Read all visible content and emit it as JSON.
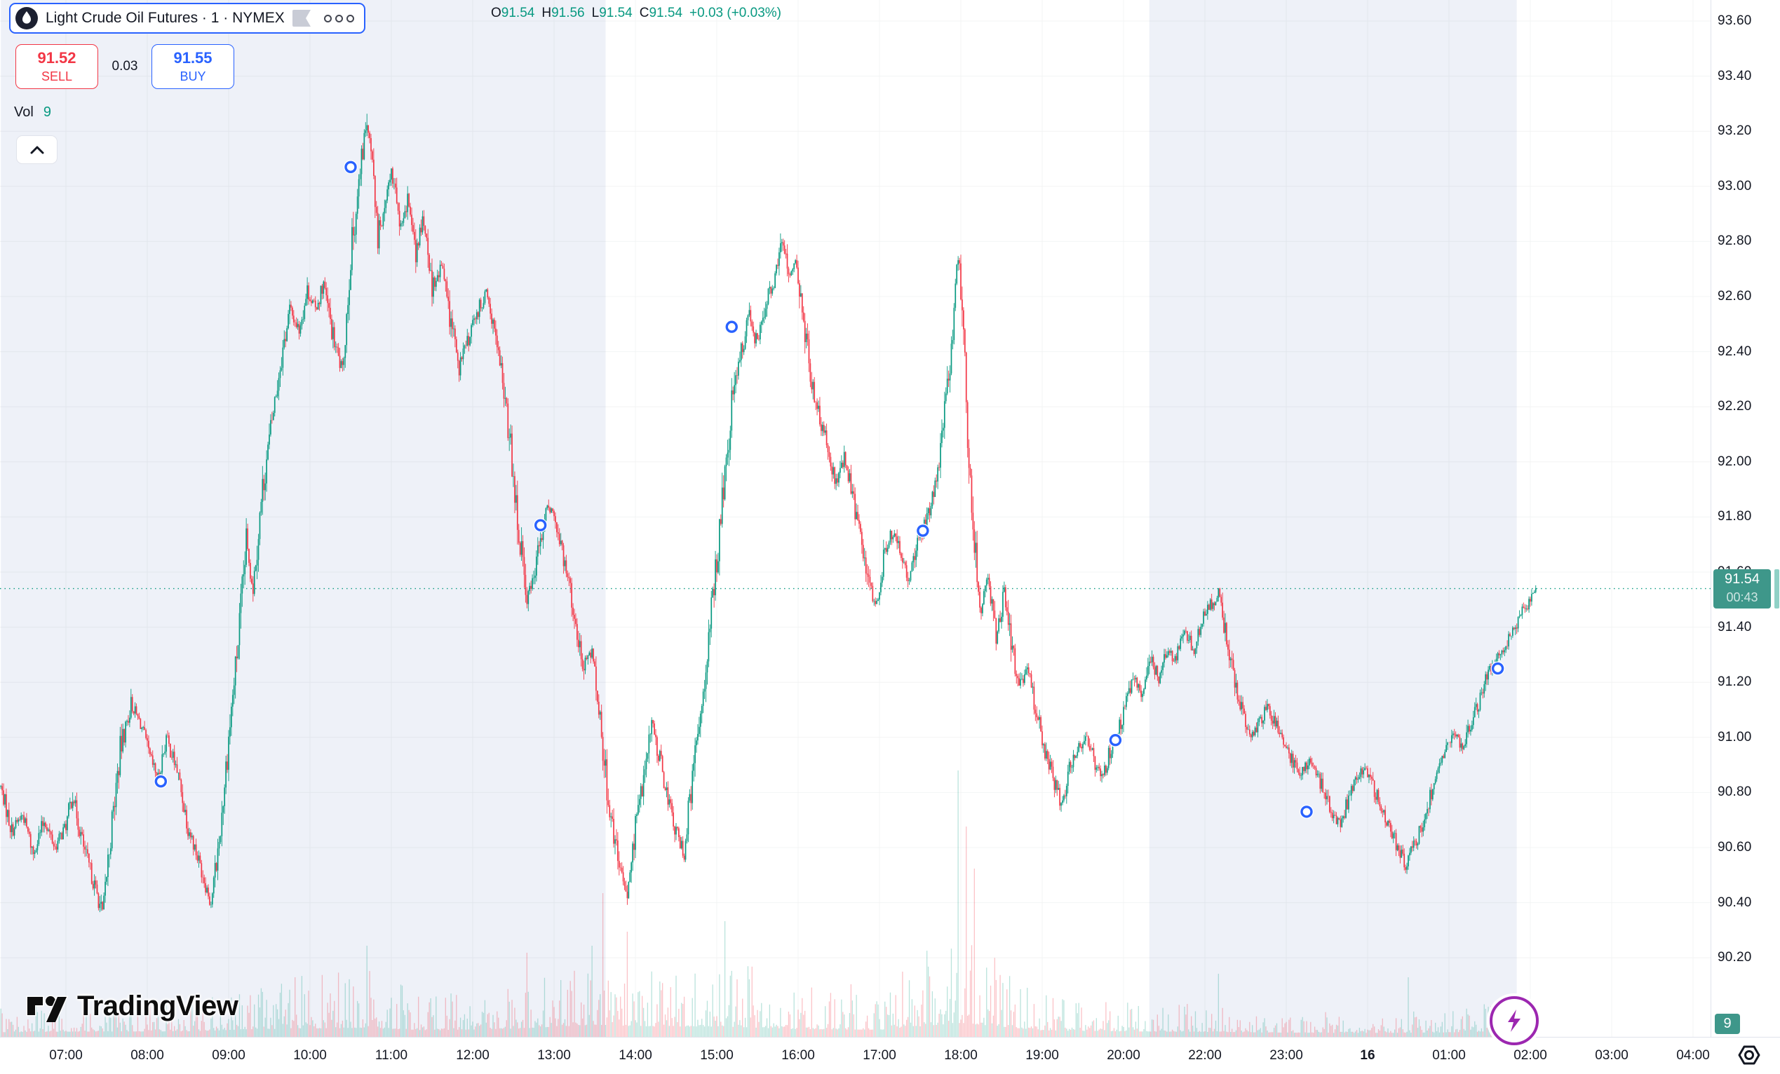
{
  "header": {
    "symbol_title": "Light Crude Oil Futures · 1 · NYMEX",
    "ohlc": {
      "o_label": "O",
      "o": "91.54",
      "h_label": "H",
      "h": "91.56",
      "l_label": "L",
      "l": "91.54",
      "c_label": "C",
      "c": "91.54",
      "change": "+0.03 (+0.03%)"
    }
  },
  "trade": {
    "sell_price": "91.52",
    "sell_label": "SELL",
    "spread": "0.03",
    "buy_price": "91.55",
    "buy_label": "BUY"
  },
  "volume_row": {
    "label": "Vol",
    "value": "9"
  },
  "price_axis": {
    "ticks": [
      "93.60",
      "93.40",
      "93.20",
      "93.00",
      "92.80",
      "92.60",
      "92.40",
      "92.20",
      "92.00",
      "91.80",
      "91.60",
      "91.40",
      "91.20",
      "91.00",
      "90.80",
      "90.60",
      "90.40",
      "90.20"
    ],
    "current_price": "91.54",
    "countdown": "00:43",
    "volume_badge": "9"
  },
  "time_axis": {
    "labels": [
      {
        "text": "07:00",
        "time": "07:00"
      },
      {
        "text": "08:00",
        "time": "08:00"
      },
      {
        "text": "09:00",
        "time": "09:00"
      },
      {
        "text": "10:00",
        "time": "10:00"
      },
      {
        "text": "11:00",
        "time": "11:00"
      },
      {
        "text": "12:00",
        "time": "12:00"
      },
      {
        "text": "13:00",
        "time": "13:00"
      },
      {
        "text": "14:00",
        "time": "14:00"
      },
      {
        "text": "15:00",
        "time": "15:00"
      },
      {
        "text": "16:00",
        "time": "16:00"
      },
      {
        "text": "17:00",
        "time": "17:00"
      },
      {
        "text": "18:00",
        "time": "18:00"
      },
      {
        "text": "19:00",
        "time": "19:00"
      },
      {
        "text": "20:00",
        "time": "20:00"
      },
      {
        "text": "22:00",
        "time": "22:00"
      },
      {
        "text": "23:00",
        "time": "23:00"
      },
      {
        "text": "16",
        "time": "00:00",
        "bold": true
      },
      {
        "text": "01:00",
        "time": "01:00"
      },
      {
        "text": "02:00",
        "time": "02:00"
      },
      {
        "text": "03:00",
        "time": "03:00"
      },
      {
        "text": "04:00",
        "time": "04:00"
      }
    ]
  },
  "footer": {
    "logo_text": "TradingView"
  },
  "colors": {
    "up": "#089981",
    "down": "#f23645",
    "vol_up": "rgba(8,153,129,0.28)",
    "vol_down": "rgba(242,54,69,0.30)",
    "accent_blue": "#2962ff",
    "sell_red": "#f23645",
    "badge_green": "#3e978a",
    "session_band": "#eef1f8",
    "grid": "rgba(42,46,57,0.055)",
    "text": "#131722",
    "axis_border": "#e0e3eb",
    "marker_blue": "#2962ff",
    "lightning_purple": "#9c27b0",
    "price_line": "#089981"
  },
  "chart_data": {
    "type": "candlestick",
    "symbol": "Light Crude Oil Futures",
    "interval": "1",
    "exchange": "NYMEX",
    "last_price": 91.54,
    "bar_change": 0.03,
    "ylim": [
      89.9,
      93.68
    ],
    "price_step": 0.2,
    "visible_time_range": [
      "06:12",
      "04:00"
    ],
    "trading_halt": [
      "21:00",
      "22:00"
    ],
    "price_path": [
      [
        "06:12",
        90.82
      ],
      [
        "06:20",
        90.66
      ],
      [
        "06:28",
        90.72
      ],
      [
        "06:36",
        90.58
      ],
      [
        "06:44",
        90.7
      ],
      [
        "06:52",
        90.6
      ],
      [
        "07:00",
        90.68
      ],
      [
        "07:05",
        90.8
      ],
      [
        "07:12",
        90.62
      ],
      [
        "07:20",
        90.48
      ],
      [
        "07:27",
        90.36
      ],
      [
        "07:32",
        90.6
      ],
      [
        "07:40",
        90.95
      ],
      [
        "07:48",
        91.12
      ],
      [
        "07:55",
        91.05
      ],
      [
        "08:02",
        90.92
      ],
      [
        "08:08",
        90.85
      ],
      [
        "08:14",
        91.0
      ],
      [
        "08:22",
        90.88
      ],
      [
        "08:30",
        90.68
      ],
      [
        "08:40",
        90.52
      ],
      [
        "08:47",
        90.4
      ],
      [
        "08:53",
        90.62
      ],
      [
        "09:00",
        91.0
      ],
      [
        "09:07",
        91.35
      ],
      [
        "09:13",
        91.7
      ],
      [
        "09:18",
        91.55
      ],
      [
        "09:25",
        91.9
      ],
      [
        "09:32",
        92.15
      ],
      [
        "09:38",
        92.35
      ],
      [
        "09:45",
        92.55
      ],
      [
        "09:52",
        92.48
      ],
      [
        "09:58",
        92.62
      ],
      [
        "10:04",
        92.55
      ],
      [
        "10:10",
        92.65
      ],
      [
        "10:17",
        92.45
      ],
      [
        "10:24",
        92.32
      ],
      [
        "10:30",
        92.75
      ],
      [
        "10:36",
        93.0
      ],
      [
        "10:42",
        93.25
      ],
      [
        "10:46",
        93.1
      ],
      [
        "10:50",
        92.8
      ],
      [
        "10:55",
        92.95
      ],
      [
        "11:00",
        93.05
      ],
      [
        "11:06",
        92.85
      ],
      [
        "11:12",
        92.95
      ],
      [
        "11:18",
        92.75
      ],
      [
        "11:24",
        92.88
      ],
      [
        "11:30",
        92.62
      ],
      [
        "11:37",
        92.72
      ],
      [
        "11:44",
        92.5
      ],
      [
        "11:50",
        92.35
      ],
      [
        "11:57",
        92.45
      ],
      [
        "12:04",
        92.55
      ],
      [
        "12:10",
        92.62
      ],
      [
        "12:16",
        92.45
      ],
      [
        "12:22",
        92.3
      ],
      [
        "12:28",
        92.05
      ],
      [
        "12:34",
        91.75
      ],
      [
        "12:40",
        91.5
      ],
      [
        "12:46",
        91.62
      ],
      [
        "12:52",
        91.78
      ],
      [
        "12:58",
        91.85
      ],
      [
        "13:04",
        91.72
      ],
      [
        "13:10",
        91.58
      ],
      [
        "13:16",
        91.4
      ],
      [
        "13:22",
        91.25
      ],
      [
        "13:28",
        91.32
      ],
      [
        "13:34",
        91.05
      ],
      [
        "13:40",
        90.78
      ],
      [
        "13:47",
        90.55
      ],
      [
        "13:54",
        90.42
      ],
      [
        "14:00",
        90.68
      ],
      [
        "14:06",
        90.85
      ],
      [
        "14:12",
        91.05
      ],
      [
        "14:18",
        90.92
      ],
      [
        "14:24",
        90.78
      ],
      [
        "14:30",
        90.65
      ],
      [
        "14:36",
        90.58
      ],
      [
        "14:42",
        90.85
      ],
      [
        "14:48",
        91.1
      ],
      [
        "14:54",
        91.35
      ],
      [
        "15:00",
        91.65
      ],
      [
        "15:06",
        91.95
      ],
      [
        "15:12",
        92.25
      ],
      [
        "15:18",
        92.4
      ],
      [
        "15:24",
        92.52
      ],
      [
        "15:30",
        92.42
      ],
      [
        "15:36",
        92.58
      ],
      [
        "15:42",
        92.65
      ],
      [
        "15:48",
        92.82
      ],
      [
        "15:53",
        92.68
      ],
      [
        "15:58",
        92.72
      ],
      [
        "16:04",
        92.5
      ],
      [
        "16:10",
        92.3
      ],
      [
        "16:16",
        92.15
      ],
      [
        "16:22",
        92.05
      ],
      [
        "16:28",
        91.92
      ],
      [
        "16:34",
        92.02
      ],
      [
        "16:40",
        91.88
      ],
      [
        "16:46",
        91.72
      ],
      [
        "16:52",
        91.55
      ],
      [
        "16:58",
        91.48
      ],
      [
        "17:04",
        91.68
      ],
      [
        "17:10",
        91.75
      ],
      [
        "17:16",
        91.65
      ],
      [
        "17:22",
        91.58
      ],
      [
        "17:28",
        91.7
      ],
      [
        "17:34",
        91.78
      ],
      [
        "17:40",
        91.88
      ],
      [
        "17:46",
        92.1
      ],
      [
        "17:52",
        92.35
      ],
      [
        "17:58",
        92.78
      ],
      [
        "18:02",
        92.45
      ],
      [
        "18:06",
        92.0
      ],
      [
        "18:10",
        91.7
      ],
      [
        "18:15",
        91.48
      ],
      [
        "18:20",
        91.58
      ],
      [
        "18:26",
        91.38
      ],
      [
        "18:32",
        91.52
      ],
      [
        "18:38",
        91.3
      ],
      [
        "18:44",
        91.18
      ],
      [
        "18:50",
        91.25
      ],
      [
        "18:56",
        91.08
      ],
      [
        "19:02",
        90.95
      ],
      [
        "19:08",
        90.85
      ],
      [
        "19:14",
        90.76
      ],
      [
        "19:20",
        90.88
      ],
      [
        "19:26",
        90.95
      ],
      [
        "19:32",
        91.02
      ],
      [
        "19:38",
        90.92
      ],
      [
        "19:44",
        90.85
      ],
      [
        "19:50",
        90.95
      ],
      [
        "19:56",
        91.02
      ],
      [
        "20:02",
        91.12
      ],
      [
        "20:08",
        91.22
      ],
      [
        "20:14",
        91.15
      ],
      [
        "20:20",
        91.28
      ],
      [
        "20:26",
        91.22
      ],
      [
        "20:32",
        91.32
      ],
      [
        "20:38",
        91.28
      ],
      [
        "20:45",
        91.38
      ],
      [
        "20:52",
        91.32
      ],
      [
        "20:58",
        91.42
      ],
      [
        "22:04",
        91.48
      ],
      [
        "22:10",
        91.52
      ],
      [
        "22:16",
        91.35
      ],
      [
        "22:22",
        91.2
      ],
      [
        "22:28",
        91.08
      ],
      [
        "22:34",
        91.0
      ],
      [
        "22:40",
        91.05
      ],
      [
        "22:46",
        91.12
      ],
      [
        "22:52",
        91.05
      ],
      [
        "22:58",
        90.98
      ],
      [
        "23:04",
        90.92
      ],
      [
        "23:10",
        90.85
      ],
      [
        "23:16",
        90.92
      ],
      [
        "23:22",
        90.88
      ],
      [
        "23:28",
        90.8
      ],
      [
        "23:34",
        90.72
      ],
      [
        "23:40",
        90.68
      ],
      [
        "23:46",
        90.78
      ],
      [
        "23:52",
        90.85
      ],
      [
        "23:58",
        90.9
      ],
      [
        "00:04",
        90.82
      ],
      [
        "00:10",
        90.75
      ],
      [
        "00:16",
        90.68
      ],
      [
        "00:22",
        90.6
      ],
      [
        "00:28",
        90.54
      ],
      [
        "00:34",
        90.6
      ],
      [
        "00:40",
        90.68
      ],
      [
        "00:46",
        90.78
      ],
      [
        "00:52",
        90.88
      ],
      [
        "00:58",
        90.95
      ],
      [
        "01:04",
        91.02
      ],
      [
        "01:10",
        90.95
      ],
      [
        "01:16",
        91.05
      ],
      [
        "01:22",
        91.12
      ],
      [
        "01:28",
        91.22
      ],
      [
        "01:34",
        91.28
      ],
      [
        "01:40",
        91.32
      ],
      [
        "01:46",
        91.38
      ],
      [
        "01:52",
        91.44
      ],
      [
        "01:58",
        91.48
      ],
      [
        "02:04",
        91.54
      ]
    ],
    "order_markers": [
      {
        "time": "08:10",
        "price": 90.84
      },
      {
        "time": "10:30",
        "price": 93.07
      },
      {
        "time": "12:50",
        "price": 91.77
      },
      {
        "time": "15:11",
        "price": 92.49
      },
      {
        "time": "17:32",
        "price": 91.75
      },
      {
        "time": "19:54",
        "price": 90.99
      },
      {
        "time": "23:15",
        "price": 90.73
      },
      {
        "time": "01:36",
        "price": 91.25
      }
    ],
    "session_bands": [
      {
        "start": "06:12",
        "end": "13:38"
      },
      {
        "start": "20:19",
        "end": "01:50"
      }
    ],
    "volume_envelope": [
      [
        "06:12",
        25
      ],
      [
        "07:00",
        30
      ],
      [
        "08:30",
        32
      ],
      [
        "09:20",
        50
      ],
      [
        "10:40",
        60
      ],
      [
        "11:30",
        40
      ],
      [
        "12:35",
        55
      ],
      [
        "13:30",
        85
      ],
      [
        "14:10",
        70
      ],
      [
        "15:05",
        70
      ],
      [
        "16:00",
        50
      ],
      [
        "17:00",
        45
      ],
      [
        "17:55",
        95
      ],
      [
        "18:15",
        85
      ],
      [
        "19:00",
        40
      ],
      [
        "20:00",
        32
      ],
      [
        "22:00",
        28
      ],
      [
        "23:00",
        22
      ],
      [
        "00:10",
        20
      ],
      [
        "01:00",
        24
      ],
      [
        "02:04",
        40
      ]
    ],
    "volume_spikes": [
      [
        "10:42",
        130
      ],
      [
        "12:40",
        120
      ],
      [
        "13:36",
        205
      ],
      [
        "13:54",
        150
      ],
      [
        "15:06",
        165
      ],
      [
        "17:58",
        380
      ],
      [
        "18:04",
        300
      ],
      [
        "18:10",
        240
      ],
      [
        "22:10",
        90
      ],
      [
        "00:30",
        85
      ]
    ],
    "current_volume": 9
  }
}
